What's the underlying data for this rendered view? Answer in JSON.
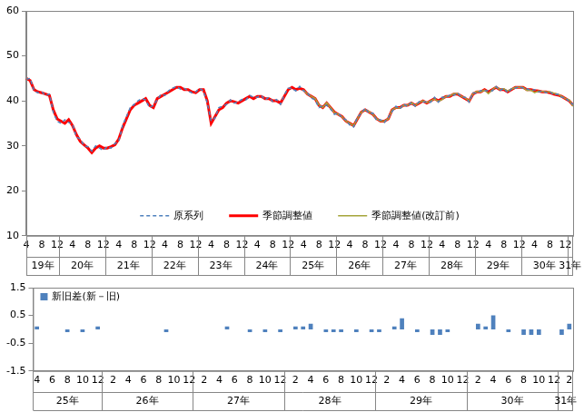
{
  "chart_data": [
    {
      "type": "line",
      "categories": [
        "4",
        null,
        null,
        null,
        "8",
        null,
        null,
        null,
        "12",
        null,
        null,
        null,
        "4",
        null,
        null,
        null,
        "8",
        null,
        null,
        null,
        "12",
        null,
        null,
        null,
        "4",
        null,
        null,
        null,
        "8",
        null,
        null,
        null,
        "12",
        null,
        null,
        null,
        "4",
        null,
        null,
        null,
        "8",
        null,
        null,
        null,
        "12",
        null,
        null,
        null,
        "4",
        null,
        null,
        null,
        "8",
        null,
        null,
        null,
        "12",
        null,
        null,
        null,
        "4",
        null,
        null,
        null,
        "8",
        null,
        null,
        null,
        "12",
        null,
        null,
        null,
        "4",
        null,
        null,
        null,
        "8",
        null,
        null,
        null,
        "12",
        null,
        null,
        null,
        "4",
        null,
        null,
        null,
        "8",
        null,
        null,
        null,
        "12",
        null,
        null,
        null,
        "4",
        null,
        null,
        null,
        "8",
        null,
        null,
        null,
        "12",
        null,
        null,
        null,
        "4",
        null,
        null,
        null,
        "8",
        null,
        null,
        null,
        "12",
        null,
        null,
        null,
        "4",
        null,
        null,
        null,
        "8",
        null,
        null,
        null,
        "12",
        null,
        null,
        null,
        "4",
        null,
        null,
        null,
        "8",
        null,
        null,
        null,
        "12",
        null,
        null
      ],
      "year_groups": [
        {
          "label": "19年",
          "months": 9
        },
        {
          "label": "20年",
          "months": 12
        },
        {
          "label": "21年",
          "months": 12
        },
        {
          "label": "22年",
          "months": 12
        },
        {
          "label": "23年",
          "months": 12
        },
        {
          "label": "24年",
          "months": 12
        },
        {
          "label": "25年",
          "months": 12
        },
        {
          "label": "26年",
          "months": 12
        },
        {
          "label": "27年",
          "months": 12
        },
        {
          "label": "28年",
          "months": 12
        },
        {
          "label": "29年",
          "months": 12
        },
        {
          "label": "30年",
          "months": 12
        },
        {
          "label": "31年",
          "months": 2
        }
      ],
      "series": [
        {
          "name": "原系列",
          "color": "#4f81bd",
          "line_style": "dashed",
          "values": [
            44.8,
            45,
            42.2,
            41.8,
            42,
            41.2,
            41.5,
            37.5,
            35.5,
            35,
            35.8,
            35.2,
            34.8,
            32,
            31.5,
            30,
            29.8,
            28.8,
            30,
            29.5,
            29,
            29.8,
            29.5,
            30.5,
            31,
            34.5,
            36.5,
            38.5,
            39.2,
            40,
            40.5,
            40.2,
            38.5,
            39,
            40.2,
            41.5,
            41.2,
            42.3,
            42.8,
            43.2,
            42.6,
            42.8,
            42.2,
            41.8,
            42,
            42.8,
            42.2,
            39.5,
            35.5,
            36.2,
            38.5,
            38.8,
            39.2,
            40.2,
            39.5,
            39.8,
            40.3,
            40.2,
            41.2,
            40.8,
            40.8,
            41.2,
            40.2,
            40.8,
            39.8,
            40.3,
            39.2,
            41.3,
            42.8,
            42.8,
            42.2,
            43.2,
            42.2,
            41.8,
            40.6,
            40.2,
            38.5,
            38.9,
            39,
            38.2,
            37,
            37.3,
            36.2,
            35.8,
            34.6,
            34.2,
            36.4,
            37.2,
            38.4,
            37.2,
            37.3,
            35.6,
            35.8,
            35.2,
            36.3,
            37.6,
            38.8,
            38.2,
            39.3,
            38.7,
            39.7,
            38.8,
            39.8,
            39.7,
            39.8,
            39.7,
            40.8,
            39.7,
            40.8,
            40.7,
            41.3,
            41.2,
            41.8,
            40.8,
            40.8,
            39.7,
            41.8,
            41.7,
            42.3,
            42.2,
            42.3,
            42.2,
            43.2,
            42.3,
            42.8,
            41.8,
            42.7,
            42.8,
            43.2,
            42.8,
            42.7,
            42.3,
            42.5,
            42,
            42.2,
            41.8,
            42,
            41.3,
            41.5,
            40.8,
            40.7,
            39.8,
            39.2
          ]
        },
        {
          "name": "季節調整値",
          "color": "#ff0000",
          "line_style": "thick",
          "values": [
            45,
            44.5,
            42.5,
            42,
            41.8,
            41.5,
            41.2,
            38,
            36,
            35.5,
            35,
            35.8,
            34.5,
            32.5,
            31,
            30.2,
            29.5,
            28.5,
            29.5,
            30,
            29.5,
            29.5,
            29.8,
            30.2,
            31.5,
            34,
            36,
            38,
            39,
            39.5,
            40,
            40.5,
            39,
            38.5,
            40.5,
            41,
            41.5,
            42,
            42.5,
            43,
            43,
            42.5,
            42.5,
            42,
            41.8,
            42.5,
            42.5,
            40,
            35,
            36.5,
            38,
            38.5,
            39.5,
            40,
            39.8,
            39.5,
            40,
            40.5,
            41,
            40.5,
            41,
            41,
            40.5,
            40.5,
            40,
            40,
            39.5,
            41,
            42.5,
            43,
            42.5,
            42.8,
            42.5,
            41.5,
            41,
            40.5,
            39,
            38.5,
            39.5,
            38.5,
            37.5,
            37,
            36.5,
            35.5,
            35,
            34.5,
            36,
            37.5,
            38,
            37.5,
            37,
            36,
            35.5,
            35.5,
            36,
            38,
            38.5,
            38.5,
            39,
            39,
            39.5,
            39,
            39.5,
            40,
            39.5,
            40,
            40.5,
            40,
            40.5,
            41,
            41,
            41.5,
            41.5,
            41,
            40.5,
            40,
            41.5,
            42,
            42,
            42.5,
            42,
            42.5,
            43,
            42.5,
            42.5,
            42,
            42.5,
            43,
            43,
            43,
            42.5,
            42.5,
            42.3,
            42.2,
            42,
            42,
            41.8,
            41.5,
            41.3,
            41,
            40.5,
            40,
            39
          ]
        },
        {
          "name": "季節調整値(改訂前)",
          "color": "#a5a53a",
          "line_style": "solid",
          "values": [
            null,
            null,
            null,
            null,
            null,
            null,
            null,
            null,
            null,
            null,
            null,
            null,
            null,
            null,
            null,
            null,
            null,
            null,
            null,
            null,
            null,
            null,
            null,
            null,
            null,
            null,
            null,
            null,
            null,
            null,
            null,
            null,
            null,
            null,
            null,
            null,
            null,
            null,
            null,
            null,
            null,
            null,
            null,
            null,
            null,
            null,
            null,
            null,
            null,
            null,
            null,
            null,
            null,
            null,
            null,
            null,
            null,
            null,
            null,
            null,
            null,
            null,
            null,
            null,
            null,
            null,
            null,
            null,
            null,
            null,
            null,
            null,
            42.4,
            41.5,
            41,
            40.5,
            39.1,
            38.5,
            39.6,
            38.5,
            37.4,
            37,
            36.5,
            35.5,
            35,
            34.5,
            36,
            37.5,
            38,
            37.6,
            37,
            36,
            35.5,
            35.5,
            36,
            38,
            38.5,
            38.4,
            39,
            39,
            39.6,
            39,
            39.6,
            40,
            39.6,
            40,
            40.4,
            39.9,
            40.3,
            41,
            41.1,
            41.6,
            41.6,
            41,
            40.6,
            40,
            41.6,
            42.1,
            42,
            42.4,
            41.6,
            42.5,
            43.1,
            42.5,
            42.7,
            42.2,
            42.6,
            43,
            43,
            43,
            42.3,
            42.4,
            41.8,
            42.2,
            42.1,
            42,
            42,
            41.7,
            41.5,
            41,
            40.5,
            40.2,
            38.8
          ]
        }
      ],
      "ylim": [
        10,
        60
      ],
      "yticks": [
        10,
        20,
        30,
        40,
        50,
        60
      ],
      "grid": false,
      "legend": "bottom"
    },
    {
      "type": "bar",
      "categories": [
        "4",
        null,
        "6",
        null,
        "8",
        null,
        "10",
        null,
        "12",
        null,
        "2",
        null,
        "4",
        null,
        "6",
        null,
        "8",
        null,
        "10",
        null,
        "12",
        null,
        "2",
        null,
        "4",
        null,
        "6",
        null,
        "8",
        null,
        "10",
        null,
        "12",
        null,
        "2",
        null,
        "4",
        null,
        "6",
        null,
        "8",
        null,
        "10",
        null,
        "12",
        null,
        "2",
        null,
        "4",
        null,
        "6",
        null,
        "8",
        null,
        "10",
        null,
        "12",
        null,
        "2",
        null,
        "4",
        null,
        "6",
        null,
        "8",
        null,
        "10",
        null,
        "12",
        null,
        "2"
      ],
      "year_groups": [
        {
          "label": "25年",
          "months": 9
        },
        {
          "label": "26年",
          "months": 12
        },
        {
          "label": "27年",
          "months": 12
        },
        {
          "label": "28年",
          "months": 12
        },
        {
          "label": "29年",
          "months": 12
        },
        {
          "label": "30年",
          "months": 12
        },
        {
          "label": "31年",
          "months": 2
        }
      ],
      "series": [
        {
          "name": "新旧差(新－旧)",
          "color": "#4f81bd",
          "values": [
            0.1,
            0,
            0,
            0,
            -0.1,
            0,
            -0.1,
            0,
            0.1,
            0,
            0,
            0,
            0,
            0,
            0,
            0,
            0,
            -0.1,
            0,
            0,
            0,
            0,
            0,
            0,
            0,
            0.1,
            0,
            0,
            -0.1,
            0,
            -0.1,
            0,
            -0.1,
            0,
            0.1,
            0.1,
            0.2,
            0,
            -0.1,
            -0.1,
            -0.1,
            0,
            -0.1,
            0,
            -0.1,
            -0.1,
            0,
            0.1,
            0.4,
            0,
            -0.1,
            0,
            -0.2,
            -0.2,
            -0.1,
            0,
            0,
            0,
            0.2,
            0.1,
            0.5,
            0,
            -0.1,
            0,
            -0.2,
            -0.2,
            -0.2,
            0,
            0,
            -0.2,
            0.2
          ]
        }
      ],
      "ylim": [
        -1.5,
        1.5
      ],
      "yticks": [
        -1.5,
        -0.5,
        0.5,
        1.5
      ],
      "grid": false,
      "legend": "left"
    }
  ]
}
